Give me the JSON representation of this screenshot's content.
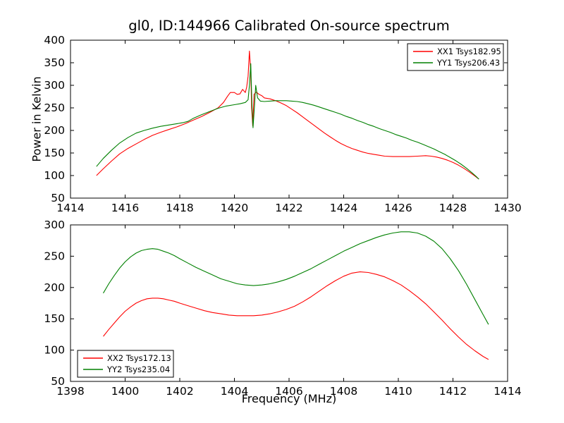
{
  "figure": {
    "title": "gl0, ID:144966 Calibrated On-source spectrum",
    "xlabel": "Frequency (MHz)",
    "ylabel": "Power in Kelvin",
    "background": "#ffffff",
    "series_colors": {
      "xx": "#ff0000",
      "yy": "#008000"
    }
  },
  "chart_data": [
    {
      "type": "line",
      "title": "gl0, ID:144966 Calibrated On-source spectrum",
      "xlabel": "",
      "ylabel": "Power in Kelvin",
      "xlim": [
        1414,
        1430
      ],
      "ylim": [
        50,
        400
      ],
      "xticks": [
        1414,
        1416,
        1418,
        1420,
        1422,
        1424,
        1426,
        1428,
        1430
      ],
      "yticks": [
        50,
        100,
        150,
        200,
        250,
        300,
        350,
        400
      ],
      "grid": false,
      "legend_position": "top-right",
      "series": [
        {
          "name": "XX1 Tsys182.95",
          "color": "#ff0000",
          "points": [
            [
              1414.95,
              100
            ],
            [
              1415.2,
              115
            ],
            [
              1415.5,
              132
            ],
            [
              1415.8,
              148
            ],
            [
              1416.1,
              160
            ],
            [
              1416.4,
              170
            ],
            [
              1416.7,
              180
            ],
            [
              1417.0,
              189
            ],
            [
              1417.3,
              196
            ],
            [
              1417.6,
              202
            ],
            [
              1417.9,
              208
            ],
            [
              1418.2,
              215
            ],
            [
              1418.5,
              223
            ],
            [
              1418.8,
              231
            ],
            [
              1419.1,
              240
            ],
            [
              1419.4,
              250
            ],
            [
              1419.6,
              262
            ],
            [
              1419.75,
              276
            ],
            [
              1419.85,
              284
            ],
            [
              1420.0,
              284
            ],
            [
              1420.1,
              280
            ],
            [
              1420.2,
              281
            ],
            [
              1420.3,
              291
            ],
            [
              1420.4,
              284
            ],
            [
              1420.45,
              296
            ],
            [
              1420.5,
              320
            ],
            [
              1420.55,
              376
            ],
            [
              1420.6,
              330
            ],
            [
              1420.63,
              250
            ],
            [
              1420.67,
              210
            ],
            [
              1420.72,
              280
            ],
            [
              1420.8,
              285
            ],
            [
              1420.9,
              280
            ],
            [
              1421.0,
              277
            ],
            [
              1421.1,
              272
            ],
            [
              1421.3,
              270
            ],
            [
              1421.5,
              266
            ],
            [
              1421.7,
              261
            ],
            [
              1421.9,
              255
            ],
            [
              1422.1,
              247
            ],
            [
              1422.3,
              239
            ],
            [
              1422.5,
              230
            ],
            [
              1422.7,
              221
            ],
            [
              1422.9,
              212
            ],
            [
              1423.1,
              203
            ],
            [
              1423.3,
              194
            ],
            [
              1423.5,
              186
            ],
            [
              1423.7,
              178
            ],
            [
              1423.9,
              171
            ],
            [
              1424.1,
              165
            ],
            [
              1424.3,
              160
            ],
            [
              1424.5,
              156
            ],
            [
              1424.7,
              152
            ],
            [
              1424.9,
              149
            ],
            [
              1425.1,
              147
            ],
            [
              1425.3,
              145
            ],
            [
              1425.5,
              143
            ],
            [
              1425.8,
              142
            ],
            [
              1426.1,
              142
            ],
            [
              1426.4,
              142
            ],
            [
              1426.7,
              143
            ],
            [
              1427.0,
              144
            ],
            [
              1427.2,
              143
            ],
            [
              1427.4,
              141
            ],
            [
              1427.6,
              138
            ],
            [
              1427.8,
              134
            ],
            [
              1428.0,
              129
            ],
            [
              1428.2,
              123
            ],
            [
              1428.4,
              116
            ],
            [
              1428.6,
              108
            ],
            [
              1428.8,
              99
            ],
            [
              1428.95,
              92
            ]
          ]
        },
        {
          "name": "YY1 Tsys206.43",
          "color": "#008000",
          "points": [
            [
              1414.95,
              120
            ],
            [
              1415.2,
              138
            ],
            [
              1415.5,
              156
            ],
            [
              1415.8,
              172
            ],
            [
              1416.1,
              184
            ],
            [
              1416.4,
              194
            ],
            [
              1416.7,
              200
            ],
            [
              1417.0,
              205
            ],
            [
              1417.3,
              209
            ],
            [
              1417.6,
              212
            ],
            [
              1417.9,
              215
            ],
            [
              1418.1,
              217
            ],
            [
              1418.3,
              220
            ],
            [
              1418.5,
              227
            ],
            [
              1418.8,
              235
            ],
            [
              1419.1,
              242
            ],
            [
              1419.4,
              249
            ],
            [
              1419.7,
              254
            ],
            [
              1420.0,
              257
            ],
            [
              1420.2,
              259
            ],
            [
              1420.4,
              262
            ],
            [
              1420.5,
              268
            ],
            [
              1420.55,
              300
            ],
            [
              1420.6,
              348
            ],
            [
              1420.64,
              260
            ],
            [
              1420.68,
              206
            ],
            [
              1420.73,
              250
            ],
            [
              1420.78,
              300
            ],
            [
              1420.85,
              272
            ],
            [
              1420.95,
              265
            ],
            [
              1421.1,
              264
            ],
            [
              1421.3,
              265
            ],
            [
              1421.5,
              266
            ],
            [
              1421.7,
              266
            ],
            [
              1421.9,
              266
            ],
            [
              1422.1,
              265
            ],
            [
              1422.3,
              264
            ],
            [
              1422.5,
              262
            ],
            [
              1422.7,
              259
            ],
            [
              1422.9,
              256
            ],
            [
              1423.1,
              252
            ],
            [
              1423.3,
              248
            ],
            [
              1423.5,
              244
            ],
            [
              1423.7,
              240
            ],
            [
              1423.9,
              236
            ],
            [
              1424.1,
              231
            ],
            [
              1424.3,
              227
            ],
            [
              1424.5,
              222
            ],
            [
              1424.7,
              218
            ],
            [
              1424.9,
              213
            ],
            [
              1425.1,
              209
            ],
            [
              1425.3,
              204
            ],
            [
              1425.5,
              200
            ],
            [
              1425.7,
              196
            ],
            [
              1425.9,
              191
            ],
            [
              1426.1,
              187
            ],
            [
              1426.3,
              183
            ],
            [
              1426.5,
              178
            ],
            [
              1426.7,
              174
            ],
            [
              1426.9,
              169
            ],
            [
              1427.1,
              164
            ],
            [
              1427.3,
              159
            ],
            [
              1427.5,
              153
            ],
            [
              1427.7,
              147
            ],
            [
              1427.9,
              140
            ],
            [
              1428.1,
              133
            ],
            [
              1428.3,
              125
            ],
            [
              1428.5,
              116
            ],
            [
              1428.7,
              106
            ],
            [
              1428.85,
              98
            ],
            [
              1428.95,
              92
            ]
          ]
        }
      ]
    },
    {
      "type": "line",
      "title": "",
      "xlabel": "Frequency (MHz)",
      "ylabel": "",
      "xlim": [
        1398,
        1414
      ],
      "ylim": [
        50,
        300
      ],
      "xticks": [
        1398,
        1400,
        1402,
        1404,
        1406,
        1408,
        1410,
        1412,
        1414
      ],
      "yticks": [
        50,
        100,
        150,
        200,
        250,
        300
      ],
      "grid": false,
      "legend_position": "bottom-left",
      "series": [
        {
          "name": "XX2 Tsys172.13",
          "color": "#ff0000",
          "points": [
            [
              1399.2,
              122
            ],
            [
              1399.4,
              133
            ],
            [
              1399.6,
              143
            ],
            [
              1399.8,
              153
            ],
            [
              1400.0,
              162
            ],
            [
              1400.2,
              169
            ],
            [
              1400.4,
              175
            ],
            [
              1400.6,
              179
            ],
            [
              1400.8,
              182
            ],
            [
              1401.0,
              183
            ],
            [
              1401.2,
              183
            ],
            [
              1401.4,
              182
            ],
            [
              1401.6,
              180
            ],
            [
              1401.8,
              178
            ],
            [
              1402.0,
              175
            ],
            [
              1402.3,
              171
            ],
            [
              1402.6,
              167
            ],
            [
              1402.9,
              163
            ],
            [
              1403.2,
              160
            ],
            [
              1403.5,
              158
            ],
            [
              1403.8,
              156
            ],
            [
              1404.1,
              155
            ],
            [
              1404.4,
              155
            ],
            [
              1404.7,
              155
            ],
            [
              1405.0,
              156
            ],
            [
              1405.3,
              158
            ],
            [
              1405.6,
              161
            ],
            [
              1405.9,
              165
            ],
            [
              1406.2,
              170
            ],
            [
              1406.5,
              177
            ],
            [
              1406.8,
              185
            ],
            [
              1407.1,
              194
            ],
            [
              1407.4,
              203
            ],
            [
              1407.7,
              211
            ],
            [
              1408.0,
              218
            ],
            [
              1408.3,
              223
            ],
            [
              1408.6,
              225
            ],
            [
              1408.9,
              224
            ],
            [
              1409.2,
              221
            ],
            [
              1409.5,
              217
            ],
            [
              1409.8,
              211
            ],
            [
              1410.1,
              204
            ],
            [
              1410.4,
              195
            ],
            [
              1410.7,
              185
            ],
            [
              1411.0,
              174
            ],
            [
              1411.3,
              161
            ],
            [
              1411.6,
              148
            ],
            [
              1411.9,
              134
            ],
            [
              1412.2,
              121
            ],
            [
              1412.5,
              109
            ],
            [
              1412.8,
              99
            ],
            [
              1413.1,
              90
            ],
            [
              1413.3,
              85
            ]
          ]
        },
        {
          "name": "YY2 Tsys235.04",
          "color": "#008000",
          "points": [
            [
              1399.2,
              191
            ],
            [
              1399.4,
              206
            ],
            [
              1399.6,
              219
            ],
            [
              1399.8,
              231
            ],
            [
              1400.0,
              241
            ],
            [
              1400.2,
              249
            ],
            [
              1400.4,
              255
            ],
            [
              1400.6,
              259
            ],
            [
              1400.8,
              261
            ],
            [
              1401.0,
              262
            ],
            [
              1401.2,
              261
            ],
            [
              1401.4,
              258
            ],
            [
              1401.6,
              255
            ],
            [
              1401.8,
              251
            ],
            [
              1402.0,
              246
            ],
            [
              1402.3,
              239
            ],
            [
              1402.6,
              232
            ],
            [
              1402.9,
              226
            ],
            [
              1403.2,
              220
            ],
            [
              1403.5,
              214
            ],
            [
              1403.8,
              210
            ],
            [
              1404.1,
              206
            ],
            [
              1404.4,
              204
            ],
            [
              1404.7,
              203
            ],
            [
              1405.0,
              204
            ],
            [
              1405.3,
              206
            ],
            [
              1405.6,
              209
            ],
            [
              1405.9,
              213
            ],
            [
              1406.2,
              218
            ],
            [
              1406.5,
              224
            ],
            [
              1406.8,
              230
            ],
            [
              1407.1,
              237
            ],
            [
              1407.4,
              244
            ],
            [
              1407.7,
              251
            ],
            [
              1408.0,
              258
            ],
            [
              1408.3,
              264
            ],
            [
              1408.6,
              270
            ],
            [
              1408.9,
              275
            ],
            [
              1409.2,
              280
            ],
            [
              1409.5,
              284
            ],
            [
              1409.8,
              287
            ],
            [
              1410.1,
              289
            ],
            [
              1410.4,
              289
            ],
            [
              1410.7,
              287
            ],
            [
              1411.0,
              282
            ],
            [
              1411.3,
              274
            ],
            [
              1411.6,
              262
            ],
            [
              1411.9,
              246
            ],
            [
              1412.2,
              227
            ],
            [
              1412.5,
              205
            ],
            [
              1412.8,
              181
            ],
            [
              1413.1,
              157
            ],
            [
              1413.3,
              141
            ]
          ]
        }
      ]
    }
  ]
}
